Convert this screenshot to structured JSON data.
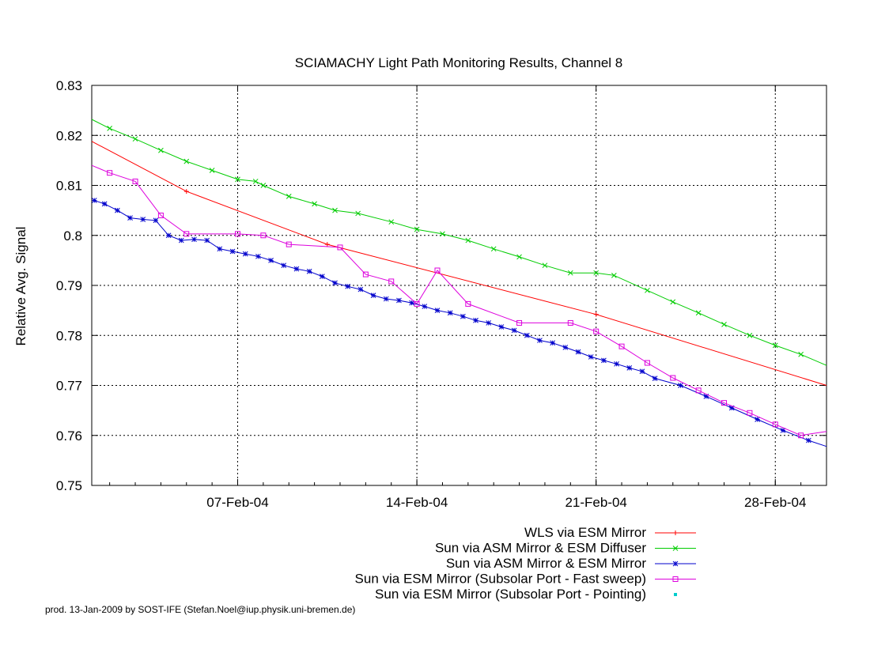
{
  "chart_data": {
    "type": "line",
    "title": "SCIAMACHY Light Path Monitoring Results, Channel 8",
    "xlabel": "",
    "ylabel": "Relative Avg. Signal",
    "x_format": "date (day index: 0 = 31-Jan-04)",
    "xlim": [
      1.3,
      30.0
    ],
    "ylim": [
      0.75,
      0.83
    ],
    "grid": true,
    "legend_position": "bottom-right",
    "x_ticks": [
      {
        "x": 7,
        "label": "07-Feb-04"
      },
      {
        "x": 14,
        "label": "14-Feb-04"
      },
      {
        "x": 21,
        "label": "21-Feb-04"
      },
      {
        "x": 28,
        "label": "28-Feb-04"
      }
    ],
    "y_ticks": [
      "0.75",
      "0.76",
      "0.77",
      "0.78",
      "0.79",
      "0.8",
      "0.81",
      "0.82",
      "0.83"
    ],
    "series": [
      {
        "name": "WLS via ESM Mirror",
        "color": "#ff0000",
        "marker": "plus",
        "x": [
          1.3,
          5.0,
          10.5,
          21.0,
          30.0
        ],
        "y": [
          0.8188,
          0.8088,
          0.7982,
          0.7842,
          0.77
        ]
      },
      {
        "name": "Sun via ASM Mirror & ESM Diffuser",
        "color": "#00cc00",
        "marker": "cross",
        "x": [
          1.3,
          2.0,
          3.0,
          4.0,
          5.0,
          6.0,
          7.0,
          7.7,
          8.0,
          9.0,
          10.0,
          10.8,
          11.7,
          13.0,
          14.0,
          15.0,
          16.0,
          17.0,
          18.0,
          19.0,
          20.0,
          21.0,
          21.7,
          23.0,
          24.0,
          25.0,
          26.0,
          27.0,
          28.0,
          29.0,
          30.0
        ],
        "y": [
          0.8232,
          0.8214,
          0.8193,
          0.817,
          0.8148,
          0.813,
          0.8112,
          0.8108,
          0.81,
          0.8078,
          0.8063,
          0.805,
          0.8044,
          0.8027,
          0.8012,
          0.8003,
          0.799,
          0.7973,
          0.7957,
          0.794,
          0.7925,
          0.7925,
          0.792,
          0.789,
          0.7867,
          0.7845,
          0.7822,
          0.78,
          0.778,
          0.7762,
          0.774
        ]
      },
      {
        "name": "Sun via ASM Mirror & ESM Mirror",
        "color": "#0000cc",
        "marker": "star",
        "x": [
          1.4,
          1.8,
          2.3,
          2.8,
          3.3,
          3.8,
          4.3,
          4.8,
          5.3,
          5.8,
          6.3,
          6.8,
          7.3,
          7.8,
          8.3,
          8.8,
          9.3,
          9.8,
          10.3,
          10.8,
          11.3,
          11.8,
          12.3,
          12.8,
          13.3,
          13.8,
          14.3,
          14.8,
          15.3,
          15.8,
          16.3,
          16.8,
          17.3,
          17.8,
          18.3,
          18.8,
          19.3,
          19.8,
          20.3,
          20.8,
          21.3,
          21.8,
          22.3,
          22.8,
          23.3,
          24.3,
          25.3,
          26.3,
          27.3,
          28.3,
          29.3,
          30.0
        ],
        "y": [
          0.807,
          0.8063,
          0.805,
          0.8035,
          0.8032,
          0.803,
          0.8,
          0.799,
          0.7992,
          0.799,
          0.7973,
          0.7968,
          0.7963,
          0.7958,
          0.795,
          0.794,
          0.7933,
          0.7928,
          0.7918,
          0.7905,
          0.7898,
          0.7892,
          0.788,
          0.7873,
          0.787,
          0.7865,
          0.7858,
          0.785,
          0.7845,
          0.7838,
          0.783,
          0.7825,
          0.7817,
          0.781,
          0.78,
          0.779,
          0.7785,
          0.7776,
          0.7767,
          0.7757,
          0.775,
          0.7743,
          0.7735,
          0.7728,
          0.7714,
          0.77,
          0.7678,
          0.7655,
          0.7632,
          0.761,
          0.759,
          0.7578
        ]
      },
      {
        "name": "Sun via ESM Mirror (Subsolar Port - Fast sweep)",
        "color": "#dd00dd",
        "marker": "square",
        "x": [
          1.3,
          2.0,
          3.0,
          4.0,
          5.0,
          7.0,
          8.0,
          9.0,
          11.0,
          12.0,
          13.0,
          14.0,
          14.8,
          16.0,
          18.0,
          20.0,
          21.0,
          22.0,
          23.0,
          24.0,
          25.0,
          26.0,
          27.0,
          28.0,
          29.0,
          30.0
        ],
        "y": [
          0.814,
          0.8125,
          0.8108,
          0.804,
          0.8003,
          0.8003,
          0.8,
          0.7982,
          0.7976,
          0.7922,
          0.7908,
          0.7863,
          0.793,
          0.7863,
          0.7825,
          0.7825,
          0.7808,
          0.7778,
          0.7745,
          0.7715,
          0.769,
          0.7665,
          0.7645,
          0.7622,
          0.76,
          0.7608
        ]
      },
      {
        "name": "Sun via ESM Mirror (Subsolar Port - Pointing)",
        "color": "#00cccc",
        "marker": "dot",
        "x": [],
        "y": []
      }
    ]
  },
  "credit": "prod. 13-Jan-2009 by SOST-IFE (Stefan.Noel@iup.physik.uni-bremen.de)"
}
